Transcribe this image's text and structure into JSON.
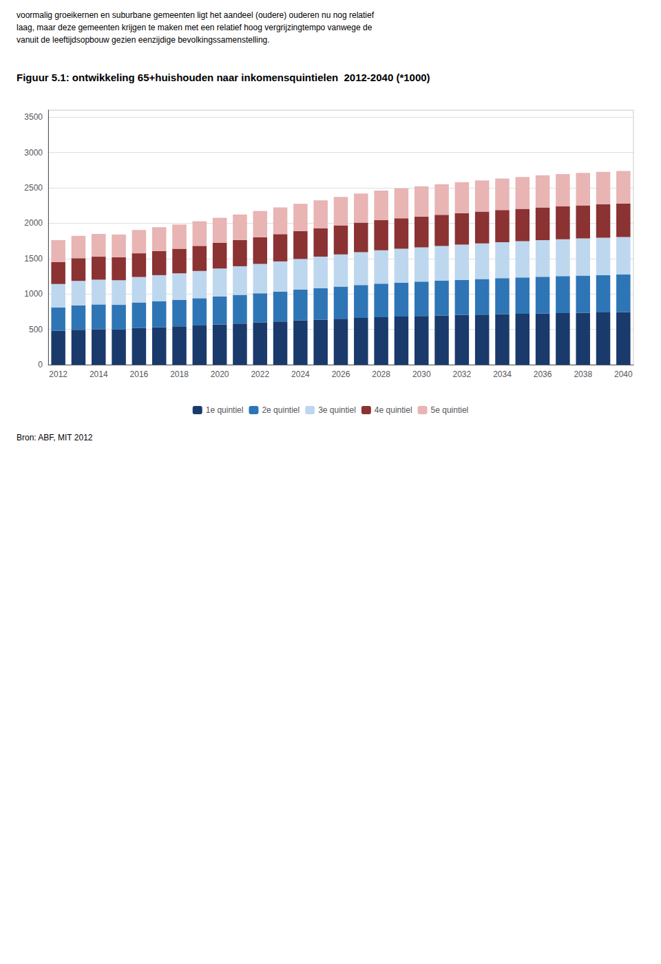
{
  "chart_data": {
    "type": "bar",
    "title": "Figuur 5.1: ontwikkeling 65+huishouden naar inkomensquintielen  2012-2040 (*1000)",
    "annotations": [
      "voormalig groeikernen en suburbane gemeenten ligt het aandeel (oudere) ouderen nu nog relatief\nlaag, maar deze gemeenten krijgen te maken met een relatief hoog vergrijzingtempo vanwege de\nvanuit de leeftijdsopbouw gezien eenzijdige bevolkingssamenstelling.",
      "Bron: ABF, MIT 2012"
    ],
    "categories": [
      "2012",
      null,
      "2014",
      null,
      "2016",
      null,
      "2018",
      null,
      "2020",
      null,
      "2022",
      null,
      "2024",
      null,
      "2026",
      null,
      "2028",
      null,
      "2030",
      null,
      "2032",
      null,
      "2034",
      null,
      "2036",
      null,
      "2038",
      null,
      "2040"
    ],
    "series": [
      {
        "name": "1e quintiel",
        "color": "#1a3a6b",
        "values": [
          480,
          495,
          502,
          498,
          520,
          530,
          542,
          555,
          570,
          582,
          595,
          610,
          625,
          638,
          650,
          662,
          672,
          680,
          688,
          695,
          702,
          708,
          715,
          720,
          726,
          730,
          735,
          740,
          745
        ]
      },
      {
        "name": "2e quintiel",
        "color": "#2e75b6",
        "values": [
          330,
          345,
          350,
          348,
          360,
          368,
          375,
          385,
          395,
          405,
          415,
          425,
          435,
          445,
          455,
          465,
          473,
          480,
          486,
          492,
          498,
          503,
          508,
          513,
          518,
          522,
          525,
          528,
          530
        ]
      },
      {
        "name": "3e quintiel",
        "color": "#bdd7ee",
        "values": [
          330,
          345,
          350,
          348,
          360,
          368,
          375,
          385,
          395,
          405,
          415,
          425,
          435,
          445,
          455,
          465,
          473,
          480,
          486,
          492,
          498,
          503,
          508,
          513,
          518,
          522,
          525,
          528,
          530
        ]
      },
      {
        "name": "4e quintiel",
        "color": "#8b3232",
        "values": [
          310,
          320,
          325,
          325,
          335,
          342,
          348,
          355,
          362,
          370,
          378,
          386,
          394,
          402,
          410,
          418,
          425,
          430,
          435,
          440,
          445,
          450,
          455,
          458,
          462,
          465,
          468,
          470,
          472
        ]
      },
      {
        "name": "5e quintiel",
        "color": "#e8b4b4",
        "values": [
          310,
          318,
          322,
          322,
          330,
          336,
          342,
          348,
          355,
          362,
          370,
          378,
          386,
          394,
          402,
          410,
          418,
          423,
          428,
          433,
          437,
          442,
          447,
          450,
          453,
          456,
          458,
          460,
          462
        ]
      }
    ],
    "stacked": true,
    "ylim": [
      0,
      3600
    ],
    "yticks": [
      0,
      500,
      1000,
      1500,
      2000,
      2500,
      3000,
      3500
    ],
    "grid": true,
    "legend": "bottom"
  }
}
